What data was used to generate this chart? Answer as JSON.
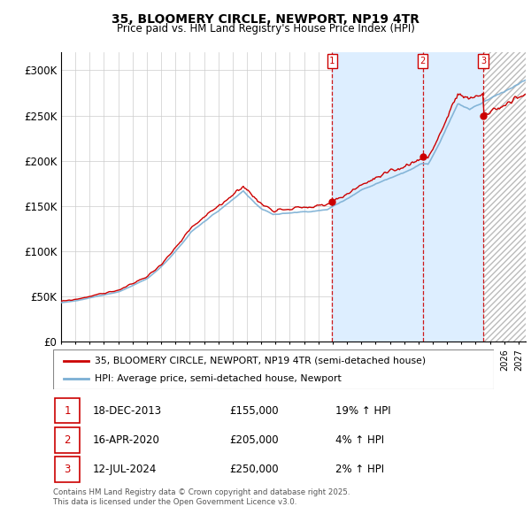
{
  "title_line1": "35, BLOOMERY CIRCLE, NEWPORT, NP19 4TR",
  "title_line2": "Price paid vs. HM Land Registry's House Price Index (HPI)",
  "ylim": [
    0,
    320000
  ],
  "yticks": [
    0,
    50000,
    100000,
    150000,
    200000,
    250000,
    300000
  ],
  "ytick_labels": [
    "£0",
    "£50K",
    "£100K",
    "£150K",
    "£200K",
    "£250K",
    "£300K"
  ],
  "xlim_start": 1995.0,
  "xlim_end": 2027.5,
  "hpi_color": "#7bafd4",
  "price_color": "#cc0000",
  "shade_color": "#ddeeff",
  "grid_color": "#cccccc",
  "transactions": [
    {
      "date": 2013.96,
      "price": 155000,
      "label": "1"
    },
    {
      "date": 2020.29,
      "price": 205000,
      "label": "2"
    },
    {
      "date": 2024.54,
      "price": 250000,
      "label": "3"
    }
  ],
  "legend_line1": "35, BLOOMERY CIRCLE, NEWPORT, NP19 4TR (semi-detached house)",
  "legend_line2": "HPI: Average price, semi-detached house, Newport",
  "table_rows": [
    {
      "num": "1",
      "date": "18-DEC-2013",
      "price": "£155,000",
      "change": "19% ↑ HPI"
    },
    {
      "num": "2",
      "date": "16-APR-2020",
      "price": "£205,000",
      "change": "4% ↑ HPI"
    },
    {
      "num": "3",
      "date": "12-JUL-2024",
      "price": "£250,000",
      "change": "2% ↑ HPI"
    }
  ],
  "footer": "Contains HM Land Registry data © Crown copyright and database right 2025.\nThis data is licensed under the Open Government Licence v3.0."
}
